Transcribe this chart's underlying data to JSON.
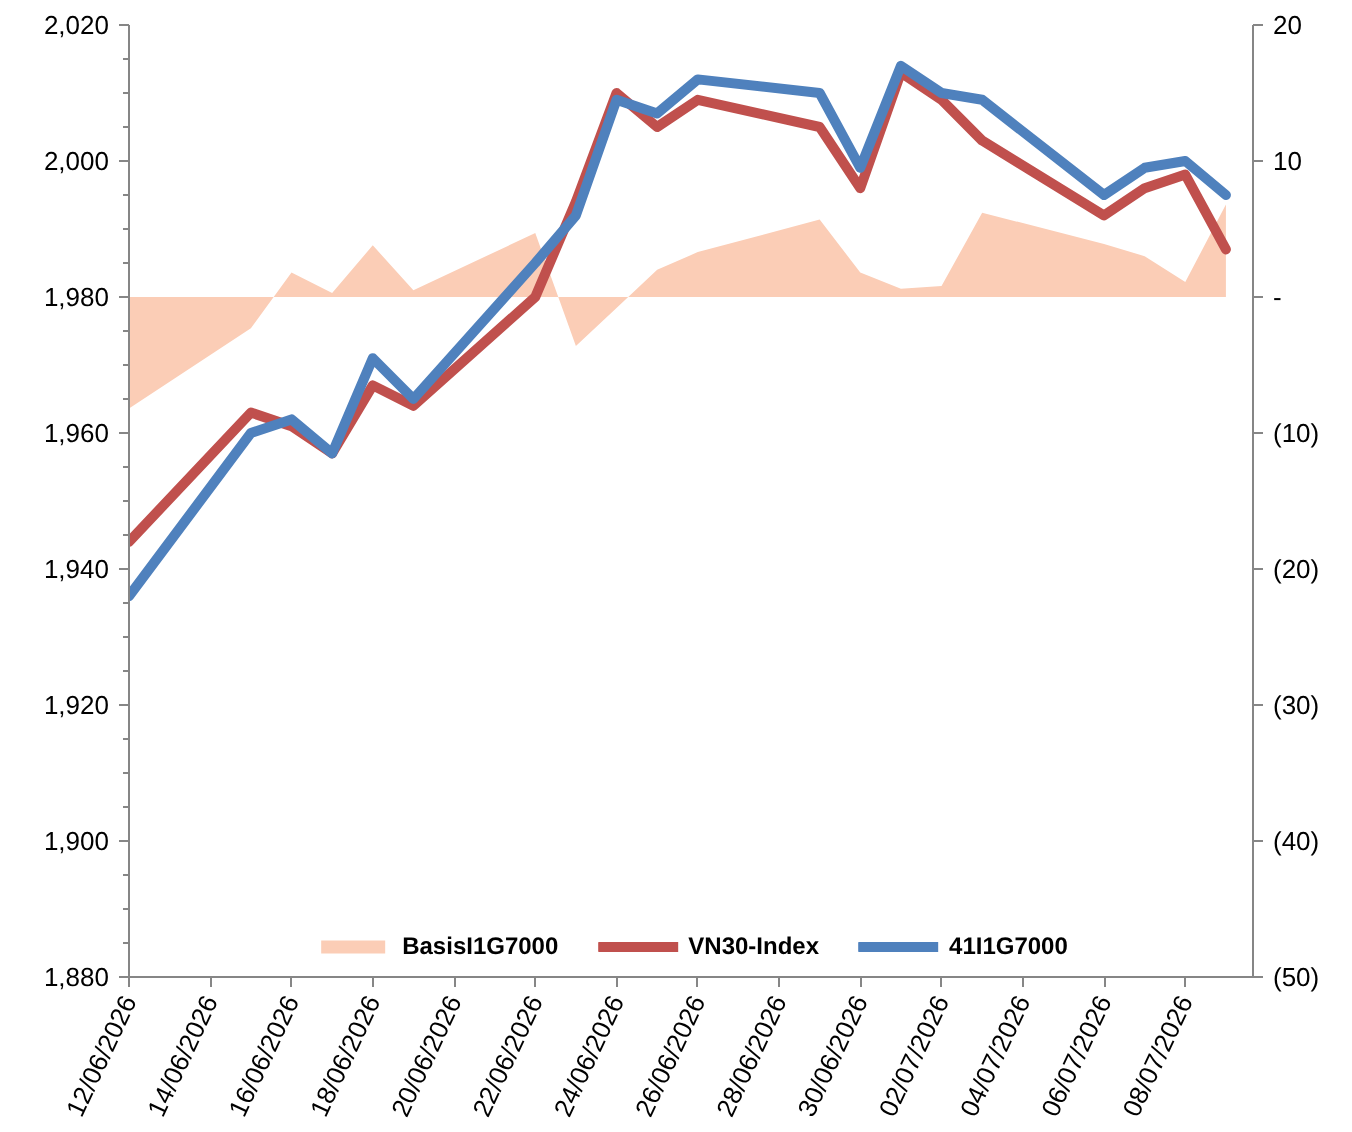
{
  "chart_data": {
    "type": "line",
    "x": [
      "2026-06-12",
      "2026-06-15",
      "2026-06-16",
      "2026-06-17",
      "2026-06-18",
      "2026-06-19",
      "2026-06-22",
      "2026-06-23",
      "2026-06-24",
      "2026-06-25",
      "2026-06-26",
      "2026-06-29",
      "2026-06-30",
      "2026-07-01",
      "2026-07-02",
      "2026-07-03",
      "2026-07-06",
      "2026-07-07",
      "2026-07-08",
      "2026-07-09"
    ],
    "series": [
      {
        "name": "BasisI1G7000",
        "type": "area",
        "axis": "y2",
        "color": "#fbcdb6",
        "values": [
          -8.2,
          -2.3,
          1.8,
          0.3,
          3.8,
          0.5,
          4.7,
          -3.6,
          -0.8,
          2.0,
          3.3,
          5.7,
          1.8,
          0.6,
          0.8,
          6.2,
          3.9,
          3.0,
          1.1,
          6.8
        ]
      },
      {
        "name": "VN30-Index",
        "color": "#c0504d",
        "values": [
          1944,
          1963,
          1961,
          1957,
          1967,
          1964,
          1980,
          1994,
          2010,
          2005,
          2009,
          2005,
          1996,
          2013,
          2009,
          2003,
          1992,
          1996,
          1998,
          1987
        ]
      },
      {
        "name": "41I1G7000",
        "color": "#4f81bd",
        "values": [
          1936,
          1960,
          1962,
          1957,
          1971,
          1965,
          1985,
          1992,
          2009,
          2007,
          2012,
          2010,
          1999,
          2014,
          2010,
          2009,
          1995,
          1999,
          2000,
          1995
        ]
      }
    ],
    "xlim": [
      "2026-06-12",
      "2026-07-09T16:00"
    ],
    "xticks": [
      {
        "value": "2026-06-12",
        "label": "12/06/2026"
      },
      {
        "value": "2026-06-14",
        "label": "14/06/2026"
      },
      {
        "value": "2026-06-16",
        "label": "16/06/2026"
      },
      {
        "value": "2026-06-18",
        "label": "18/06/2026"
      },
      {
        "value": "2026-06-20",
        "label": "20/06/2026"
      },
      {
        "value": "2026-06-22",
        "label": "22/06/2026"
      },
      {
        "value": "2026-06-24",
        "label": "24/06/2026"
      },
      {
        "value": "2026-06-26",
        "label": "26/06/2026"
      },
      {
        "value": "2026-06-28",
        "label": "28/06/2026"
      },
      {
        "value": "2026-06-30",
        "label": "30/06/2026"
      },
      {
        "value": "2026-07-02",
        "label": "02/07/2026"
      },
      {
        "value": "2026-07-04",
        "label": "04/07/2026"
      },
      {
        "value": "2026-07-06",
        "label": "06/07/2026"
      },
      {
        "value": "2026-07-08",
        "label": "08/07/2026"
      }
    ],
    "ylim": [
      1880,
      2020
    ],
    "yticks": [
      {
        "value": 1880,
        "label": "1,880"
      },
      {
        "value": 1900,
        "label": "1,900"
      },
      {
        "value": 1920,
        "label": "1,920"
      },
      {
        "value": 1940,
        "label": "1,940"
      },
      {
        "value": 1960,
        "label": "1,960"
      },
      {
        "value": 1980,
        "label": "1,980"
      },
      {
        "value": 2000,
        "label": "2,000"
      },
      {
        "value": 2020,
        "label": "2,020"
      }
    ],
    "y2lim": [
      -50,
      20
    ],
    "y2ticks": [
      {
        "value": -50,
        "label": "(50)"
      },
      {
        "value": -40,
        "label": "(40)"
      },
      {
        "value": -30,
        "label": "(30)"
      },
      {
        "value": -20,
        "label": "(20)"
      },
      {
        "value": -10,
        "label": "(10)"
      },
      {
        "value": 0,
        "label": "-"
      },
      10,
      20
    ],
    "grid": false,
    "legend": "bottom",
    "line_style": "solid",
    "marker": "none"
  }
}
